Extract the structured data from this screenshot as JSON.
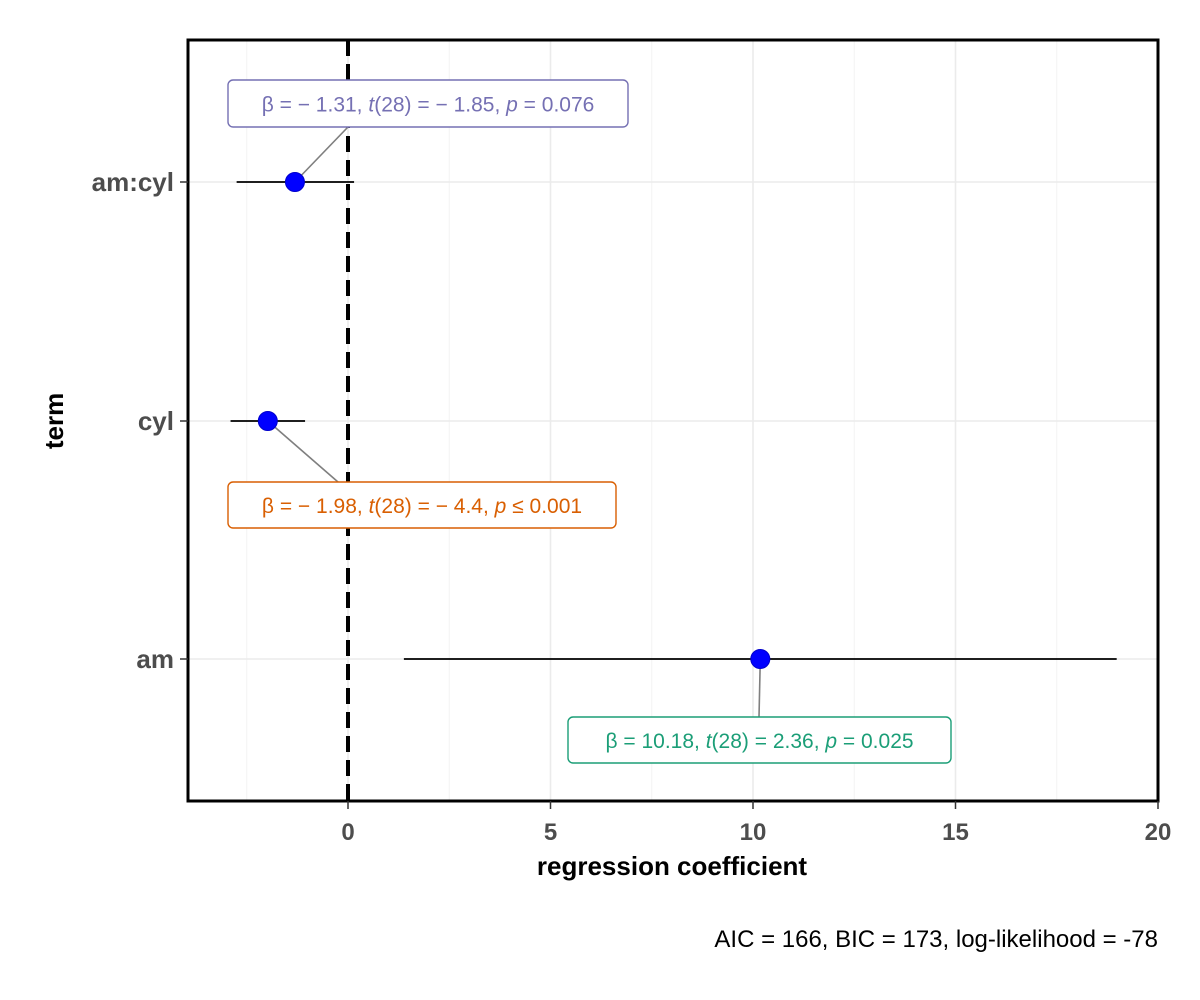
{
  "chart_data": {
    "type": "scatter",
    "xlabel": "regression coefficient",
    "ylabel": "term",
    "xlim": [
      -4,
      20.2
    ],
    "x_ticks": [
      0,
      5,
      10,
      15,
      20
    ],
    "x_tick_labels": [
      "0",
      "5",
      "10",
      "15",
      "20"
    ],
    "reference_line": 0,
    "caption": "AIC = 166, BIC = 173, log-likelihood = -78",
    "point_color": "#0000ff",
    "terms": [
      {
        "term": "am:cyl",
        "estimate": -1.31,
        "conf_low": -2.75,
        "conf_high": 0.15,
        "label_color": "#7570b3",
        "label": {
          "b": "β",
          "beta": "= − 1.31,",
          "t": "t",
          "df": "(28)",
          "tval": "= − 1.85,",
          "p": "p",
          "pval": "= 0.076"
        }
      },
      {
        "term": "cyl",
        "estimate": -1.98,
        "conf_low": -2.9,
        "conf_high": -1.06,
        "label_color": "#d95f02",
        "label": {
          "b": "β",
          "beta": "= − 1.98,",
          "t": "t",
          "df": "(28)",
          "tval": "= − 4.4,",
          "p": "p",
          "pval": "≤ 0.001"
        }
      },
      {
        "term": "am",
        "estimate": 10.18,
        "conf_low": 1.38,
        "conf_high": 18.98,
        "label_color": "#1b9e77",
        "label": {
          "b": "β",
          "beta": "= 10.18,",
          "t": "t",
          "df": "(28)",
          "tval": "= 2.36,",
          "p": "p",
          "pval": "= 0.025"
        }
      }
    ]
  }
}
